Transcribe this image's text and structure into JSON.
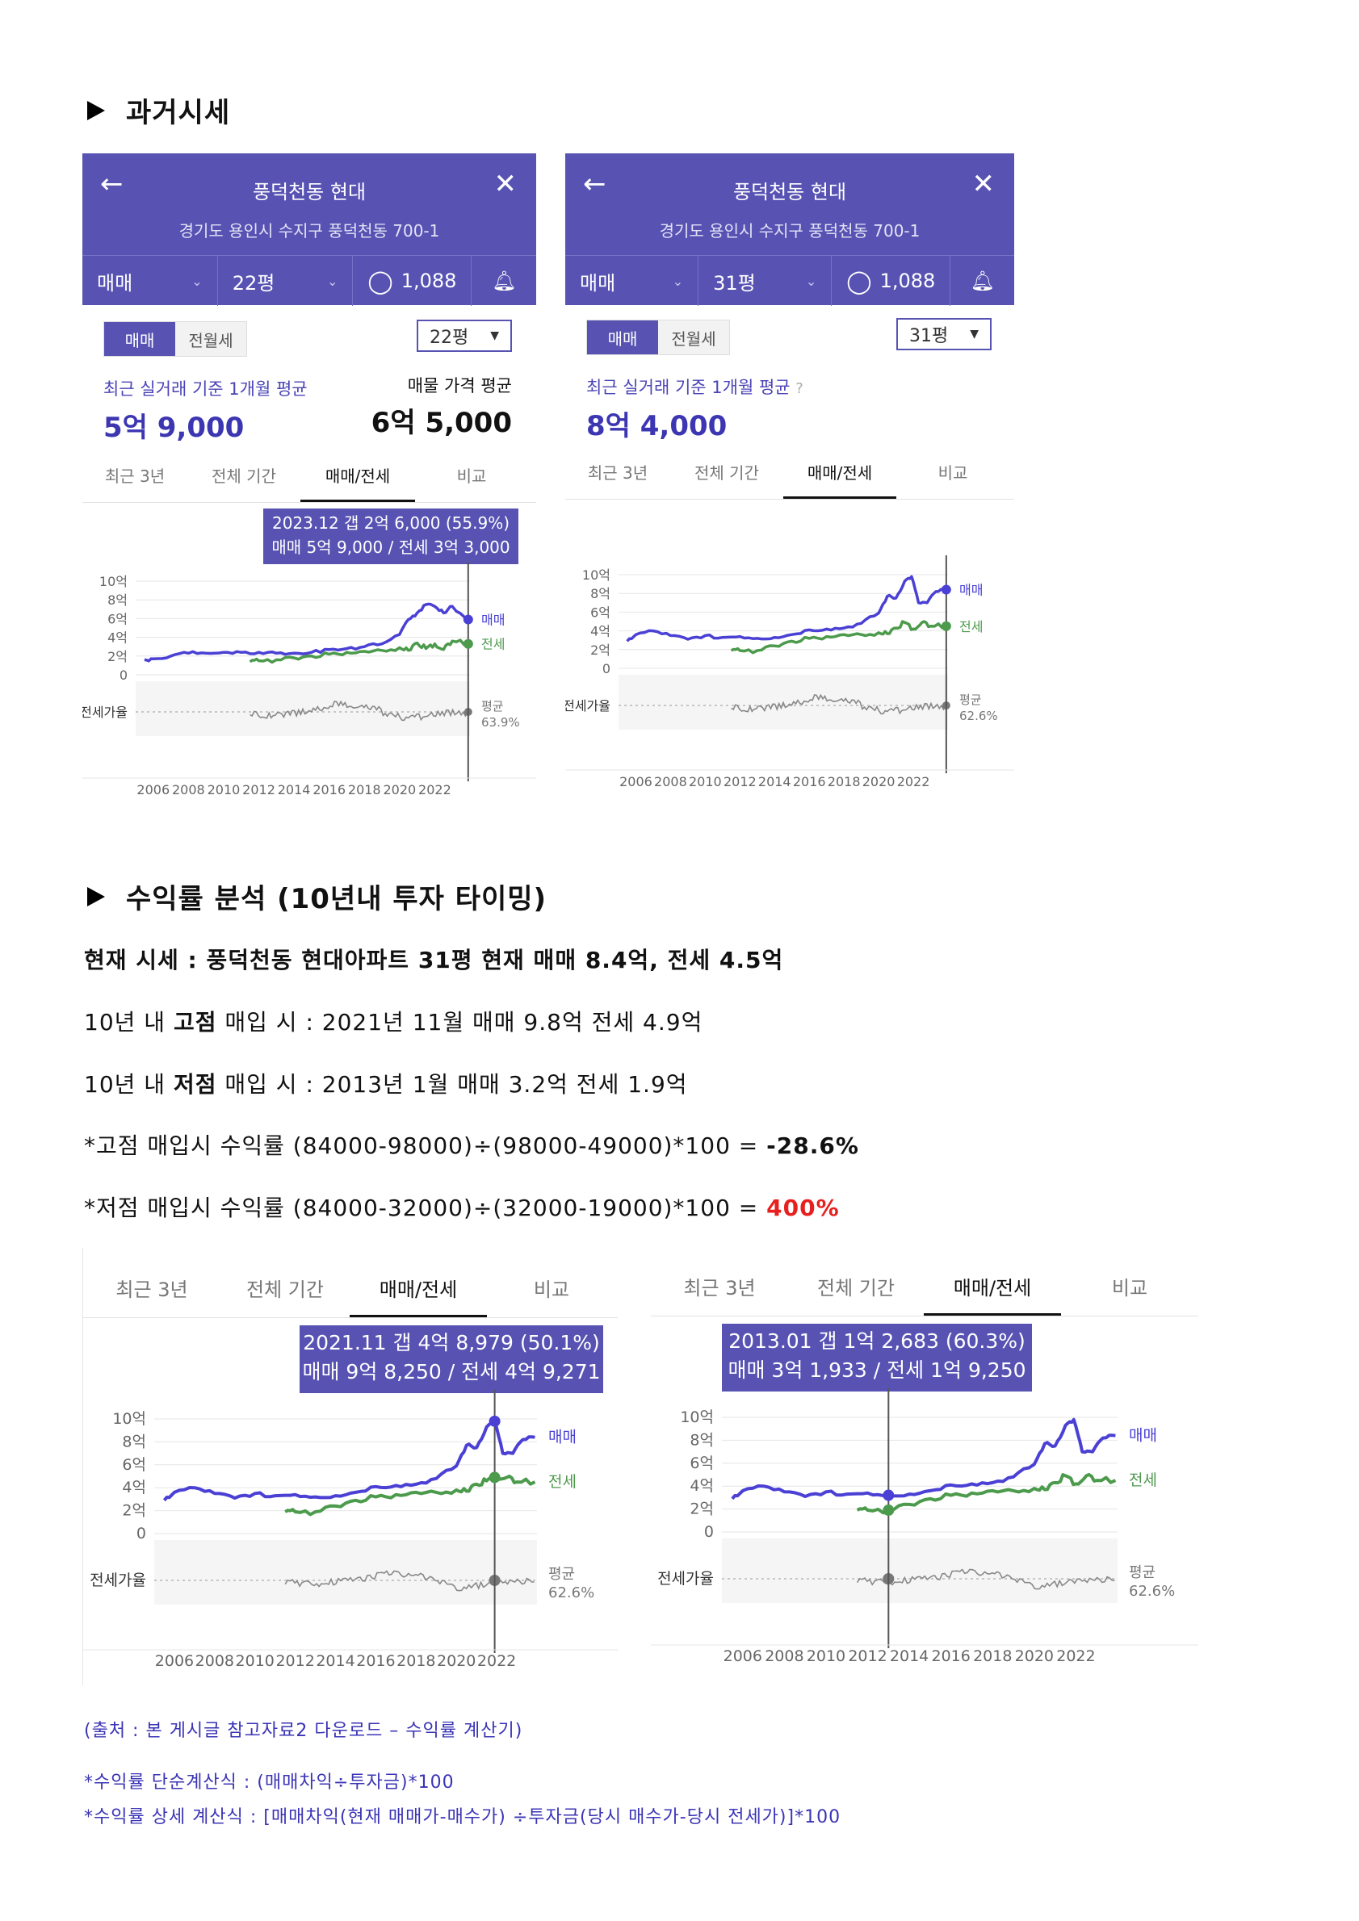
{
  "section1": {
    "title": "과거시세"
  },
  "panel_left": {
    "title": "풍덕천동 현대",
    "address": "경기도 용인시 수지구 풍덕천동 700-1",
    "trade_type": "매매",
    "size": "22평",
    "comments": "1,088",
    "seg_buy": "매매",
    "seg_rent": "전월세",
    "size_select": "22평",
    "avg_label": "최근 실거래 기준 1개월 평균",
    "avg_value": "5억 9,000",
    "listing_label": "매물 가격 평균",
    "listing_value": "6억 5,000",
    "tabs": [
      "최근 3년",
      "전체 기간",
      "매매/전세",
      "비교"
    ],
    "tooltip_line1": "2023.12  갭 2억 6,000 (55.9%)",
    "tooltip_line2": "매매 5억 9,000 / 전세 3억 3,000"
  },
  "panel_right": {
    "title": "풍덕천동 현대",
    "address": "경기도 용인시 수지구 풍덕천동 700-1",
    "trade_type": "매매",
    "size": "31평",
    "comments": "1,088",
    "seg_buy": "매매",
    "seg_rent": "전월세",
    "size_select": "31평",
    "avg_label": "최근 실거래 기준 1개월 평균",
    "avg_value": "8억 4,000",
    "tabs": [
      "최근 3년",
      "전체 기간",
      "매매/전세",
      "비교"
    ]
  },
  "section2": {
    "title": "수익률 분석 (10년내 투자 타이밍)"
  },
  "analysis": {
    "current": "현재 시세 : 풍덕천동 현대아파트 31평 현재 매매 8.4억, 전세 4.5억",
    "high_pre": "10년 내 ",
    "high_bold": "고점",
    "high_post": " 매입 시 : 2021년 11월 매매 9.8억 전세 4.9억",
    "low_pre": "10년 내 ",
    "low_bold": "저점",
    "low_post": " 매입 시 : 2013년 1월 매매 3.2억 전세 1.9억",
    "calc_high_pre": "*고점 매입시 수익률 (84000-98000)÷(98000-49000)*100 = ",
    "calc_high_result": "-28.6%",
    "calc_low_pre": "*저점 매입시 수익률 (84000-32000)÷(32000-19000)*100 = ",
    "calc_low_result": "400%"
  },
  "bottom_left": {
    "tabs": [
      "최근 3년",
      "전체 기간",
      "매매/전세",
      "비교"
    ],
    "tooltip_line1": "2021.11  갭 4억 8,979 (50.1%)",
    "tooltip_line2": "매매 9억 8,250 / 전세 4억 9,271"
  },
  "bottom_right": {
    "tabs": [
      "최근 3년",
      "전체 기간",
      "매매/전세",
      "비교"
    ],
    "tooltip_line1": "2013.01  갭 1억 2,683 (60.3%)",
    "tooltip_line2": "매매 3억 1,933 / 전세 1억 9,250"
  },
  "footnotes": {
    "source": "(출처 : 본 게시글 참고자료2 다운로드 – 수익률 계산기)",
    "simple": "*수익률 단순계산식 : (매매차익÷투자금)*100",
    "detail": "*수익률 상세 계산식 : [매매차익(현재 매매가-매수가) ÷투자금(당시 매수가-당시 전세가)]*100"
  },
  "colors": {
    "purple": "#5853b3",
    "sale_line": "#4a40d4",
    "jeonse_line": "#4c9a4c",
    "ratio_line": "#888888",
    "red": "#e81f1f"
  },
  "chart_data": [
    {
      "type": "line",
      "name_ref": "panel_left chart (22평)",
      "x_ticks": [
        "2006",
        "2008",
        "2010",
        "2012",
        "2014",
        "2016",
        "2018",
        "2020",
        "2022"
      ],
      "y_ticks": [
        "10억",
        "8억",
        "6억",
        "4억",
        "2억",
        "0"
      ],
      "ylim": [
        0,
        10
      ],
      "ratio_label": "전세가율",
      "avg_label": "평균",
      "avg_value": "63.9%",
      "series": [
        {
          "name": "매매",
          "x": [
            2005.5,
            2006,
            2007,
            2008,
            2009,
            2010,
            2011,
            2012,
            2013,
            2014,
            2015,
            2016,
            2017,
            2018,
            2019,
            2020,
            2020.5,
            2021,
            2021.5,
            2022,
            2022.5,
            2023,
            2023.9
          ],
          "values": [
            1.6,
            1.7,
            2.0,
            2.3,
            2.3,
            2.4,
            2.4,
            2.4,
            2.3,
            2.3,
            2.4,
            2.7,
            2.8,
            3.0,
            3.3,
            4.3,
            5.9,
            6.6,
            7.5,
            7.3,
            6.6,
            7.3,
            5.9
          ]
        },
        {
          "name": "전세",
          "x": [
            2011.5,
            2012,
            2013,
            2014,
            2015,
            2016,
            2017,
            2018,
            2019,
            2020,
            2020.5,
            2021,
            2021.5,
            2022,
            2022.5,
            2023,
            2023.9
          ],
          "values": [
            1.4,
            1.5,
            1.6,
            1.8,
            2.0,
            2.2,
            2.4,
            2.5,
            2.6,
            2.9,
            2.6,
            3.4,
            2.8,
            3.3,
            2.7,
            3.6,
            3.3
          ]
        }
      ]
    },
    {
      "type": "line",
      "name_ref": "panel_right chart (31평)",
      "x_ticks": [
        "2006",
        "2008",
        "2010",
        "2012",
        "2014",
        "2016",
        "2018",
        "2020",
        "2022"
      ],
      "y_ticks": [
        "10억",
        "8억",
        "6억",
        "4억",
        "2억",
        "0"
      ],
      "ylim": [
        0,
        10
      ],
      "ratio_label": "전세가율",
      "avg_label": "평균",
      "avg_value": "62.6%",
      "series": [
        {
          "name": "매매",
          "x": [
            2005.5,
            2006,
            2007,
            2008,
            2009,
            2010,
            2011,
            2012,
            2013,
            2014,
            2015,
            2016,
            2017,
            2018,
            2019,
            2020,
            2020.5,
            2021,
            2021.5,
            2021.9,
            2022.3,
            2022.8,
            2023.3,
            2023.9
          ],
          "values": [
            2.9,
            3.6,
            4.0,
            3.5,
            3.1,
            3.5,
            3.3,
            3.4,
            3.2,
            3.3,
            3.6,
            4.1,
            4.2,
            4.3,
            4.8,
            5.9,
            7.7,
            7.5,
            9.3,
            9.8,
            7.0,
            7.0,
            8.2,
            8.4
          ]
        },
        {
          "name": "전세",
          "x": [
            2011.5,
            2012,
            2013,
            2014,
            2015,
            2016,
            2017,
            2018,
            2019,
            2020,
            2020.5,
            2021,
            2021.5,
            2022,
            2022.5,
            2023,
            2023.9
          ],
          "values": [
            1.9,
            1.9,
            1.9,
            2.4,
            2.9,
            3.2,
            3.4,
            3.6,
            3.6,
            3.8,
            3.7,
            4.3,
            4.9,
            4.2,
            4.9,
            4.5,
            4.5
          ]
        }
      ]
    },
    {
      "type": "line",
      "name_ref": "bottom_left chart (2021.11 peak)",
      "x_ticks": [
        "2006",
        "2008",
        "2010",
        "2012",
        "2014",
        "2016",
        "2018",
        "2020",
        "2022"
      ],
      "y_ticks": [
        "10억",
        "8억",
        "6억",
        "4억",
        "2억",
        "0"
      ],
      "ylim": [
        0,
        10
      ],
      "ratio_label": "전세가율",
      "avg_label": "평균",
      "avg_value": "62.6%",
      "highlight_x": 2021.9,
      "series": [
        {
          "name": "매매",
          "x": [
            2005.5,
            2006,
            2007,
            2008,
            2009,
            2010,
            2011,
            2012,
            2013,
            2014,
            2015,
            2016,
            2017,
            2018,
            2019,
            2020,
            2020.5,
            2021,
            2021.5,
            2021.9,
            2022.3,
            2022.8,
            2023.3,
            2023.9
          ],
          "values": [
            2.9,
            3.6,
            4.0,
            3.5,
            3.1,
            3.5,
            3.3,
            3.4,
            3.2,
            3.3,
            3.6,
            4.1,
            4.2,
            4.3,
            4.8,
            5.9,
            7.7,
            7.5,
            9.3,
            9.8,
            7.0,
            7.0,
            8.2,
            8.4
          ]
        },
        {
          "name": "전세",
          "x": [
            2011.5,
            2012,
            2013,
            2014,
            2015,
            2016,
            2017,
            2018,
            2019,
            2020,
            2020.5,
            2021,
            2021.5,
            2021.9,
            2022.5,
            2023,
            2023.9
          ],
          "values": [
            1.9,
            1.9,
            1.9,
            2.4,
            2.9,
            3.2,
            3.4,
            3.6,
            3.6,
            3.8,
            3.7,
            4.3,
            4.6,
            4.9,
            4.9,
            4.5,
            4.5
          ]
        }
      ]
    },
    {
      "type": "line",
      "name_ref": "bottom_right chart (2013.01 trough)",
      "x_ticks": [
        "2006",
        "2008",
        "2010",
        "2012",
        "2014",
        "2016",
        "2018",
        "2020",
        "2022"
      ],
      "y_ticks": [
        "10억",
        "8억",
        "6억",
        "4억",
        "2억",
        "0"
      ],
      "ylim": [
        0,
        10
      ],
      "ratio_label": "전세가율",
      "avg_label": "평균",
      "avg_value": "62.6%",
      "highlight_x": 2013.0,
      "series": [
        {
          "name": "매매",
          "x": [
            2005.5,
            2006,
            2007,
            2008,
            2009,
            2010,
            2011,
            2012,
            2013,
            2014,
            2015,
            2016,
            2017,
            2018,
            2019,
            2020,
            2020.5,
            2021,
            2021.5,
            2021.9,
            2022.3,
            2022.8,
            2023.3,
            2023.9
          ],
          "values": [
            2.9,
            3.6,
            4.0,
            3.5,
            3.1,
            3.5,
            3.3,
            3.4,
            3.2,
            3.3,
            3.6,
            4.1,
            4.2,
            4.3,
            4.8,
            5.9,
            7.7,
            7.5,
            9.3,
            9.8,
            7.0,
            7.0,
            8.2,
            8.4
          ]
        },
        {
          "name": "전세",
          "x": [
            2011.5,
            2012,
            2013,
            2014,
            2015,
            2016,
            2017,
            2018,
            2019,
            2020,
            2020.5,
            2021,
            2021.5,
            2022,
            2022.5,
            2023,
            2023.9
          ],
          "values": [
            1.9,
            1.9,
            1.9,
            2.4,
            2.9,
            3.2,
            3.4,
            3.6,
            3.6,
            3.8,
            3.7,
            4.3,
            4.9,
            4.2,
            4.9,
            4.5,
            4.5
          ]
        }
      ]
    }
  ]
}
